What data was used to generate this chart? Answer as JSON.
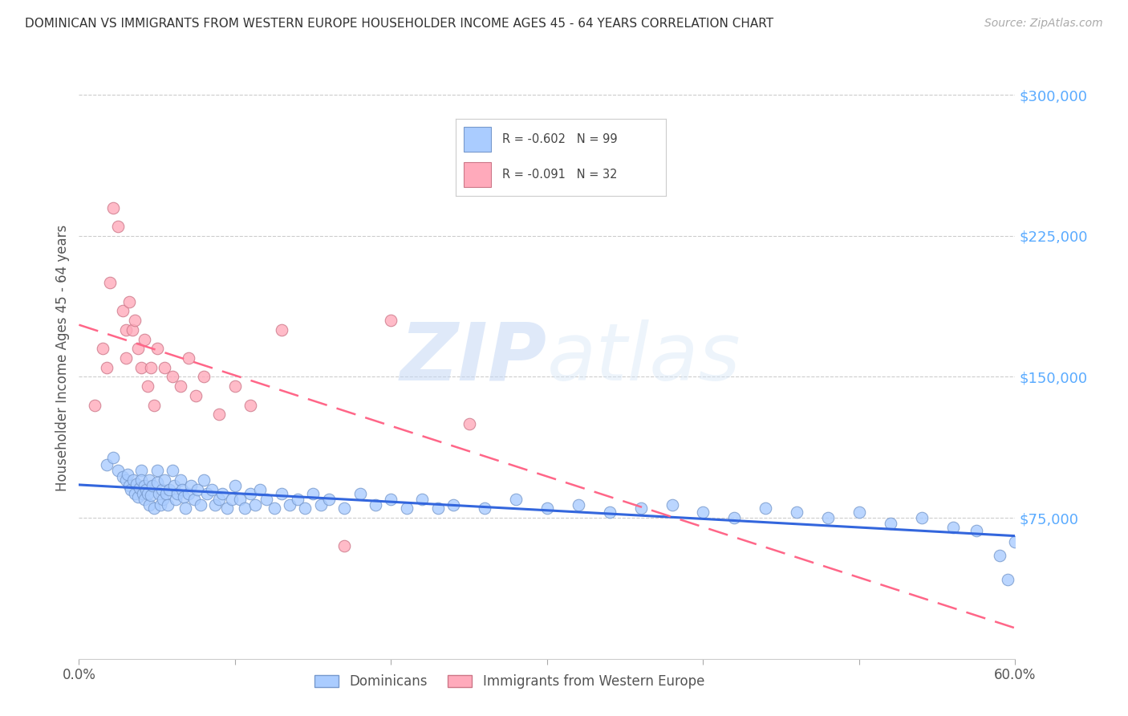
{
  "title": "DOMINICAN VS IMMIGRANTS FROM WESTERN EUROPE HOUSEHOLDER INCOME AGES 45 - 64 YEARS CORRELATION CHART",
  "source": "Source: ZipAtlas.com",
  "ylabel": "Householder Income Ages 45 - 64 years",
  "xlim": [
    0,
    0.6
  ],
  "ylim": [
    0,
    320000
  ],
  "yticks": [
    0,
    75000,
    150000,
    225000,
    300000
  ],
  "ytick_labels": [
    "",
    "$75,000",
    "$150,000",
    "$225,000",
    "$300,000"
  ],
  "xticks": [
    0.0,
    0.1,
    0.2,
    0.3,
    0.4,
    0.5,
    0.6
  ],
  "xtick_labels": [
    "0.0%",
    "",
    "",
    "",
    "",
    "",
    "60.0%"
  ],
  "background_color": "#ffffff",
  "grid_color": "#cccccc",
  "title_color": "#333333",
  "ytick_color": "#5aabff",
  "series1_label": "Dominicans",
  "series1_color": "#aaccff",
  "series1_edge_color": "#7799cc",
  "series1_line_color": "#3366dd",
  "series1_R": "-0.602",
  "series1_N": "99",
  "series2_label": "Immigrants from Western Europe",
  "series2_color": "#ffaabb",
  "series2_edge_color": "#cc7788",
  "series2_line_color": "#ff6688",
  "series2_R": "-0.091",
  "series2_N": "32",
  "watermark_zip": "ZIP",
  "watermark_atlas": "atlas",
  "dominicans_x": [
    0.018,
    0.022,
    0.025,
    0.028,
    0.03,
    0.031,
    0.032,
    0.033,
    0.035,
    0.036,
    0.037,
    0.038,
    0.039,
    0.04,
    0.04,
    0.041,
    0.042,
    0.042,
    0.043,
    0.044,
    0.045,
    0.045,
    0.046,
    0.047,
    0.048,
    0.05,
    0.05,
    0.051,
    0.052,
    0.053,
    0.054,
    0.055,
    0.056,
    0.057,
    0.058,
    0.06,
    0.061,
    0.062,
    0.063,
    0.065,
    0.066,
    0.067,
    0.068,
    0.07,
    0.072,
    0.074,
    0.076,
    0.078,
    0.08,
    0.082,
    0.085,
    0.087,
    0.09,
    0.092,
    0.095,
    0.098,
    0.1,
    0.103,
    0.106,
    0.11,
    0.113,
    0.116,
    0.12,
    0.125,
    0.13,
    0.135,
    0.14,
    0.145,
    0.15,
    0.155,
    0.16,
    0.17,
    0.18,
    0.19,
    0.2,
    0.21,
    0.22,
    0.23,
    0.24,
    0.26,
    0.28,
    0.3,
    0.32,
    0.34,
    0.36,
    0.38,
    0.4,
    0.42,
    0.44,
    0.46,
    0.48,
    0.5,
    0.52,
    0.54,
    0.56,
    0.575,
    0.59,
    0.595,
    0.6
  ],
  "dominicans_y": [
    103000,
    107000,
    100000,
    97000,
    95000,
    98000,
    92000,
    90000,
    95000,
    88000,
    93000,
    86000,
    91000,
    100000,
    95000,
    88000,
    92000,
    85000,
    90000,
    88000,
    95000,
    82000,
    87000,
    92000,
    80000,
    100000,
    94000,
    88000,
    82000,
    90000,
    85000,
    95000,
    88000,
    82000,
    90000,
    100000,
    92000,
    85000,
    88000,
    95000,
    90000,
    86000,
    80000,
    88000,
    92000,
    85000,
    90000,
    82000,
    95000,
    88000,
    90000,
    82000,
    85000,
    88000,
    80000,
    85000,
    92000,
    85000,
    80000,
    88000,
    82000,
    90000,
    85000,
    80000,
    88000,
    82000,
    85000,
    80000,
    88000,
    82000,
    85000,
    80000,
    88000,
    82000,
    85000,
    80000,
    85000,
    80000,
    82000,
    80000,
    85000,
    80000,
    82000,
    78000,
    80000,
    82000,
    78000,
    75000,
    80000,
    78000,
    75000,
    78000,
    72000,
    75000,
    70000,
    68000,
    55000,
    42000,
    62000
  ],
  "immigrants_x": [
    0.01,
    0.015,
    0.018,
    0.02,
    0.022,
    0.025,
    0.028,
    0.03,
    0.03,
    0.032,
    0.034,
    0.036,
    0.038,
    0.04,
    0.042,
    0.044,
    0.046,
    0.048,
    0.05,
    0.055,
    0.06,
    0.065,
    0.07,
    0.075,
    0.08,
    0.09,
    0.1,
    0.11,
    0.13,
    0.17,
    0.2,
    0.25
  ],
  "immigrants_y": [
    135000,
    165000,
    155000,
    200000,
    240000,
    230000,
    185000,
    175000,
    160000,
    190000,
    175000,
    180000,
    165000,
    155000,
    170000,
    145000,
    155000,
    135000,
    165000,
    155000,
    150000,
    145000,
    160000,
    140000,
    150000,
    130000,
    145000,
    135000,
    175000,
    60000,
    180000,
    125000
  ]
}
